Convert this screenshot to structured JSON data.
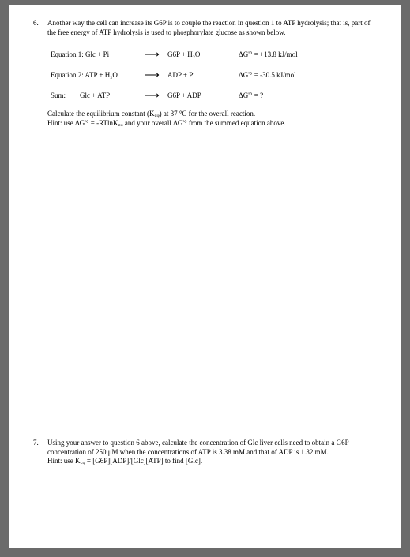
{
  "q6": {
    "number": "6.",
    "intro": "Another way the cell can increase its G6P is to couple the reaction in question 1 to ATP hydrolysis; that is, part of the free energy of ATP hydrolysis is used to phosphorylate glucose as shown below.",
    "rows": [
      {
        "label": "Equation 1: Glc + Pi",
        "arrow": "⟶",
        "right": "G6P + H₂O",
        "delta": "ΔG'° = +13.8 kJ/mol"
      },
      {
        "label": "Equation 2: ATP + H₂O",
        "arrow": "⟶",
        "right": "ADP + Pi",
        "delta": "ΔG'° = -30.5 kJ/mol"
      },
      {
        "label": "Sum:        Glc + ATP",
        "arrow": "⟶",
        "right": "G6P + ADP",
        "delta": "ΔG'° = ?"
      }
    ],
    "calc1": "Calculate the equilibrium constant (K꜀ᵩ) at 37 °C for the overall reaction.",
    "calc2": "Hint: use ΔG'° = -RTlnK꜀ᵩ and your overall ΔG'° from the summed equation above."
  },
  "q7": {
    "number": "7.",
    "line1": "Using your answer to question 6 above, calculate the concentration of Glc liver cells need to obtain a G6P concentration of 250 μM when the concentrations of ATP is 3.38 mM and that of ADP is 1.32 mM.",
    "line2": "Hint: use K꜀ᵩ =  [G6P][ADP]/[Glc][ATP] to find [Glc]."
  }
}
